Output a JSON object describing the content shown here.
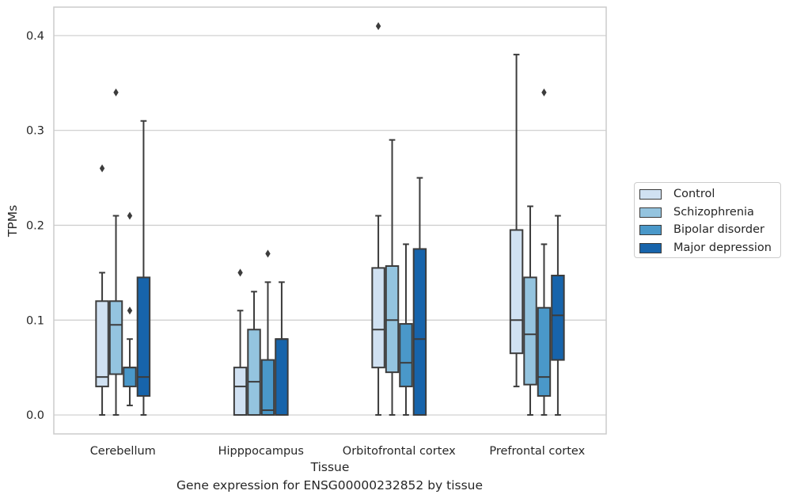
{
  "caption": "Gene expression for ENSG00000232852 by tissue",
  "chart_data": {
    "type": "box",
    "title": "",
    "xlabel": "Tissue",
    "ylabel": "TPMs",
    "ylim": [
      -0.02,
      0.43
    ],
    "yticks": [
      0.0,
      0.1,
      0.2,
      0.3,
      0.4
    ],
    "ytick_labels": [
      "0.0",
      "0.1",
      "0.2",
      "0.3",
      "0.4"
    ],
    "grid": "horizontal",
    "legend_position": "right",
    "categories": [
      "Cerebellum",
      "Hipppocampus",
      "Orbitofrontal cortex",
      "Prefrontal cortex"
    ],
    "series": [
      {
        "name": "Control",
        "color": "#d0e1f2",
        "boxes": [
          {
            "whislo": 0.0,
            "q1": 0.03,
            "med": 0.04,
            "q3": 0.12,
            "whishi": 0.15,
            "fliers": [
              0.26
            ]
          },
          {
            "whislo": 0.0,
            "q1": 0.0,
            "med": 0.03,
            "q3": 0.05,
            "whishi": 0.11,
            "fliers": [
              0.15
            ]
          },
          {
            "whislo": 0.0,
            "q1": 0.05,
            "med": 0.09,
            "q3": 0.155,
            "whishi": 0.21,
            "fliers": [
              0.41
            ]
          },
          {
            "whislo": 0.03,
            "q1": 0.065,
            "med": 0.1,
            "q3": 0.195,
            "whishi": 0.38,
            "fliers": []
          }
        ]
      },
      {
        "name": "Schizophrenia",
        "color": "#94c4df",
        "boxes": [
          {
            "whislo": 0.0,
            "q1": 0.043,
            "med": 0.095,
            "q3": 0.12,
            "whishi": 0.21,
            "fliers": [
              0.34
            ]
          },
          {
            "whislo": 0.0,
            "q1": 0.0,
            "med": 0.035,
            "q3": 0.09,
            "whishi": 0.13,
            "fliers": []
          },
          {
            "whislo": 0.0,
            "q1": 0.045,
            "med": 0.1,
            "q3": 0.157,
            "whishi": 0.29,
            "fliers": []
          },
          {
            "whislo": 0.0,
            "q1": 0.032,
            "med": 0.085,
            "q3": 0.145,
            "whishi": 0.22,
            "fliers": []
          }
        ]
      },
      {
        "name": "Bipolar disorder",
        "color": "#4a98c9",
        "boxes": [
          {
            "whislo": 0.01,
            "q1": 0.03,
            "med": 0.05,
            "q3": 0.05,
            "whishi": 0.08,
            "fliers": [
              0.11,
              0.21
            ]
          },
          {
            "whislo": 0.0,
            "q1": 0.0,
            "med": 0.005,
            "q3": 0.058,
            "whishi": 0.14,
            "fliers": [
              0.17
            ]
          },
          {
            "whislo": 0.0,
            "q1": 0.03,
            "med": 0.055,
            "q3": 0.096,
            "whishi": 0.18,
            "fliers": []
          },
          {
            "whislo": 0.0,
            "q1": 0.02,
            "med": 0.04,
            "q3": 0.113,
            "whishi": 0.18,
            "fliers": [
              0.34
            ]
          }
        ]
      },
      {
        "name": "Major depression",
        "color": "#1764ab",
        "boxes": [
          {
            "whislo": 0.0,
            "q1": 0.02,
            "med": 0.04,
            "q3": 0.145,
            "whishi": 0.31,
            "fliers": []
          },
          {
            "whislo": 0.0,
            "q1": 0.0,
            "med": 0.08,
            "q3": 0.08,
            "whishi": 0.14,
            "fliers": []
          },
          {
            "whislo": 0.0,
            "q1": 0.0,
            "med": 0.08,
            "q3": 0.175,
            "whishi": 0.25,
            "fliers": []
          },
          {
            "whislo": 0.0,
            "q1": 0.058,
            "med": 0.105,
            "q3": 0.147,
            "whishi": 0.21,
            "fliers": []
          }
        ]
      }
    ]
  }
}
